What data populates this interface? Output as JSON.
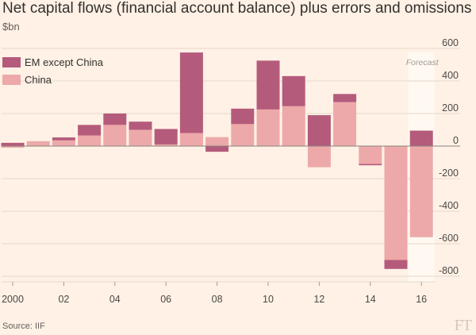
{
  "title": "Net capital flows (financial account balance) plus errors and omissions",
  "unit": "$bn",
  "source": "Source: IIF",
  "logo": "FT",
  "colors": {
    "background": "#fff1e5",
    "em_except_china": "#b45b7c",
    "china": "#eda9a9",
    "grid": "#e3d6cb",
    "zero": "#8a8480",
    "forecast_band": "#fff9f2"
  },
  "chart_data": {
    "type": "bar",
    "stacked": true,
    "categories": [
      "2000",
      "2001",
      "2002",
      "2003",
      "2004",
      "2005",
      "2006",
      "2007",
      "2008",
      "2009",
      "2010",
      "2011",
      "2012",
      "2013",
      "2014",
      "2015",
      "2016"
    ],
    "series": [
      {
        "name": "China",
        "values": [
          -10,
          30,
          35,
          65,
          130,
          100,
          10,
          80,
          55,
          135,
          225,
          245,
          -130,
          270,
          -110,
          -700,
          -560
        ]
      },
      {
        "name": "EM except China",
        "values": [
          20,
          0,
          18,
          65,
          70,
          50,
          95,
          495,
          -35,
          95,
          300,
          185,
          190,
          50,
          -8,
          -55,
          95
        ]
      }
    ],
    "ylim": [
      -800,
      600
    ],
    "yticks": [
      600,
      400,
      200,
      0,
      -200,
      -400,
      -600,
      -800
    ],
    "xtick_labels": [
      {
        "index": 0,
        "label": "2000"
      },
      {
        "index": 2,
        "label": "02"
      },
      {
        "index": 4,
        "label": "04"
      },
      {
        "index": 6,
        "label": "06"
      },
      {
        "index": 8,
        "label": "08"
      },
      {
        "index": 10,
        "label": "10"
      },
      {
        "index": 12,
        "label": "12"
      },
      {
        "index": 14,
        "label": "14"
      },
      {
        "index": 16,
        "label": "16"
      }
    ],
    "forecast_label": "Forecast",
    "forecast_index": 16,
    "legend": {
      "position": "top-left",
      "entries": [
        "EM except China",
        "China"
      ]
    },
    "grid": true
  }
}
